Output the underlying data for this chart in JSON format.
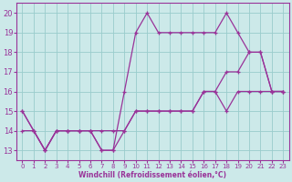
{
  "xlabel": "Windchill (Refroidissement éolien,°C)",
  "xlim": [
    -0.5,
    23.5
  ],
  "ylim": [
    12.5,
    20.5
  ],
  "yticks": [
    13,
    14,
    15,
    16,
    17,
    18,
    19,
    20
  ],
  "xticks": [
    0,
    1,
    2,
    3,
    4,
    5,
    6,
    7,
    8,
    9,
    10,
    11,
    12,
    13,
    14,
    15,
    16,
    17,
    18,
    19,
    20,
    21,
    22,
    23
  ],
  "bg_color": "#cce9e9",
  "line_color": "#993399",
  "grid_color": "#99cccc",
  "line1_x": [
    0,
    1,
    2,
    3,
    4,
    5,
    6,
    7,
    8,
    9,
    10,
    11,
    12,
    13,
    14,
    15,
    16,
    17,
    18,
    19,
    20,
    21,
    22,
    23
  ],
  "line1_y": [
    15,
    14,
    13,
    14,
    14,
    14,
    14,
    13,
    13,
    16,
    19,
    20,
    19,
    19,
    19,
    19,
    19,
    19,
    20,
    19,
    18,
    18,
    16,
    16
  ],
  "line2_x": [
    0,
    1,
    2,
    3,
    4,
    5,
    6,
    7,
    8,
    9,
    10,
    11,
    12,
    13,
    14,
    15,
    16,
    17,
    18,
    19,
    20,
    21,
    22,
    23
  ],
  "line2_y": [
    15,
    14,
    13,
    14,
    14,
    14,
    14,
    14,
    14,
    14,
    15,
    15,
    15,
    15,
    15,
    15,
    16,
    16,
    17,
    17,
    18,
    18,
    16,
    16
  ],
  "line3_x": [
    0,
    1,
    2,
    3,
    4,
    5,
    6,
    7,
    8,
    9,
    10,
    11,
    12,
    13,
    14,
    15,
    16,
    17,
    18,
    19,
    20,
    21,
    22,
    23
  ],
  "line3_y": [
    14,
    14,
    13,
    14,
    14,
    14,
    14,
    13,
    13,
    14,
    15,
    15,
    15,
    15,
    15,
    15,
    16,
    16,
    15,
    16,
    16,
    16,
    16,
    16
  ]
}
